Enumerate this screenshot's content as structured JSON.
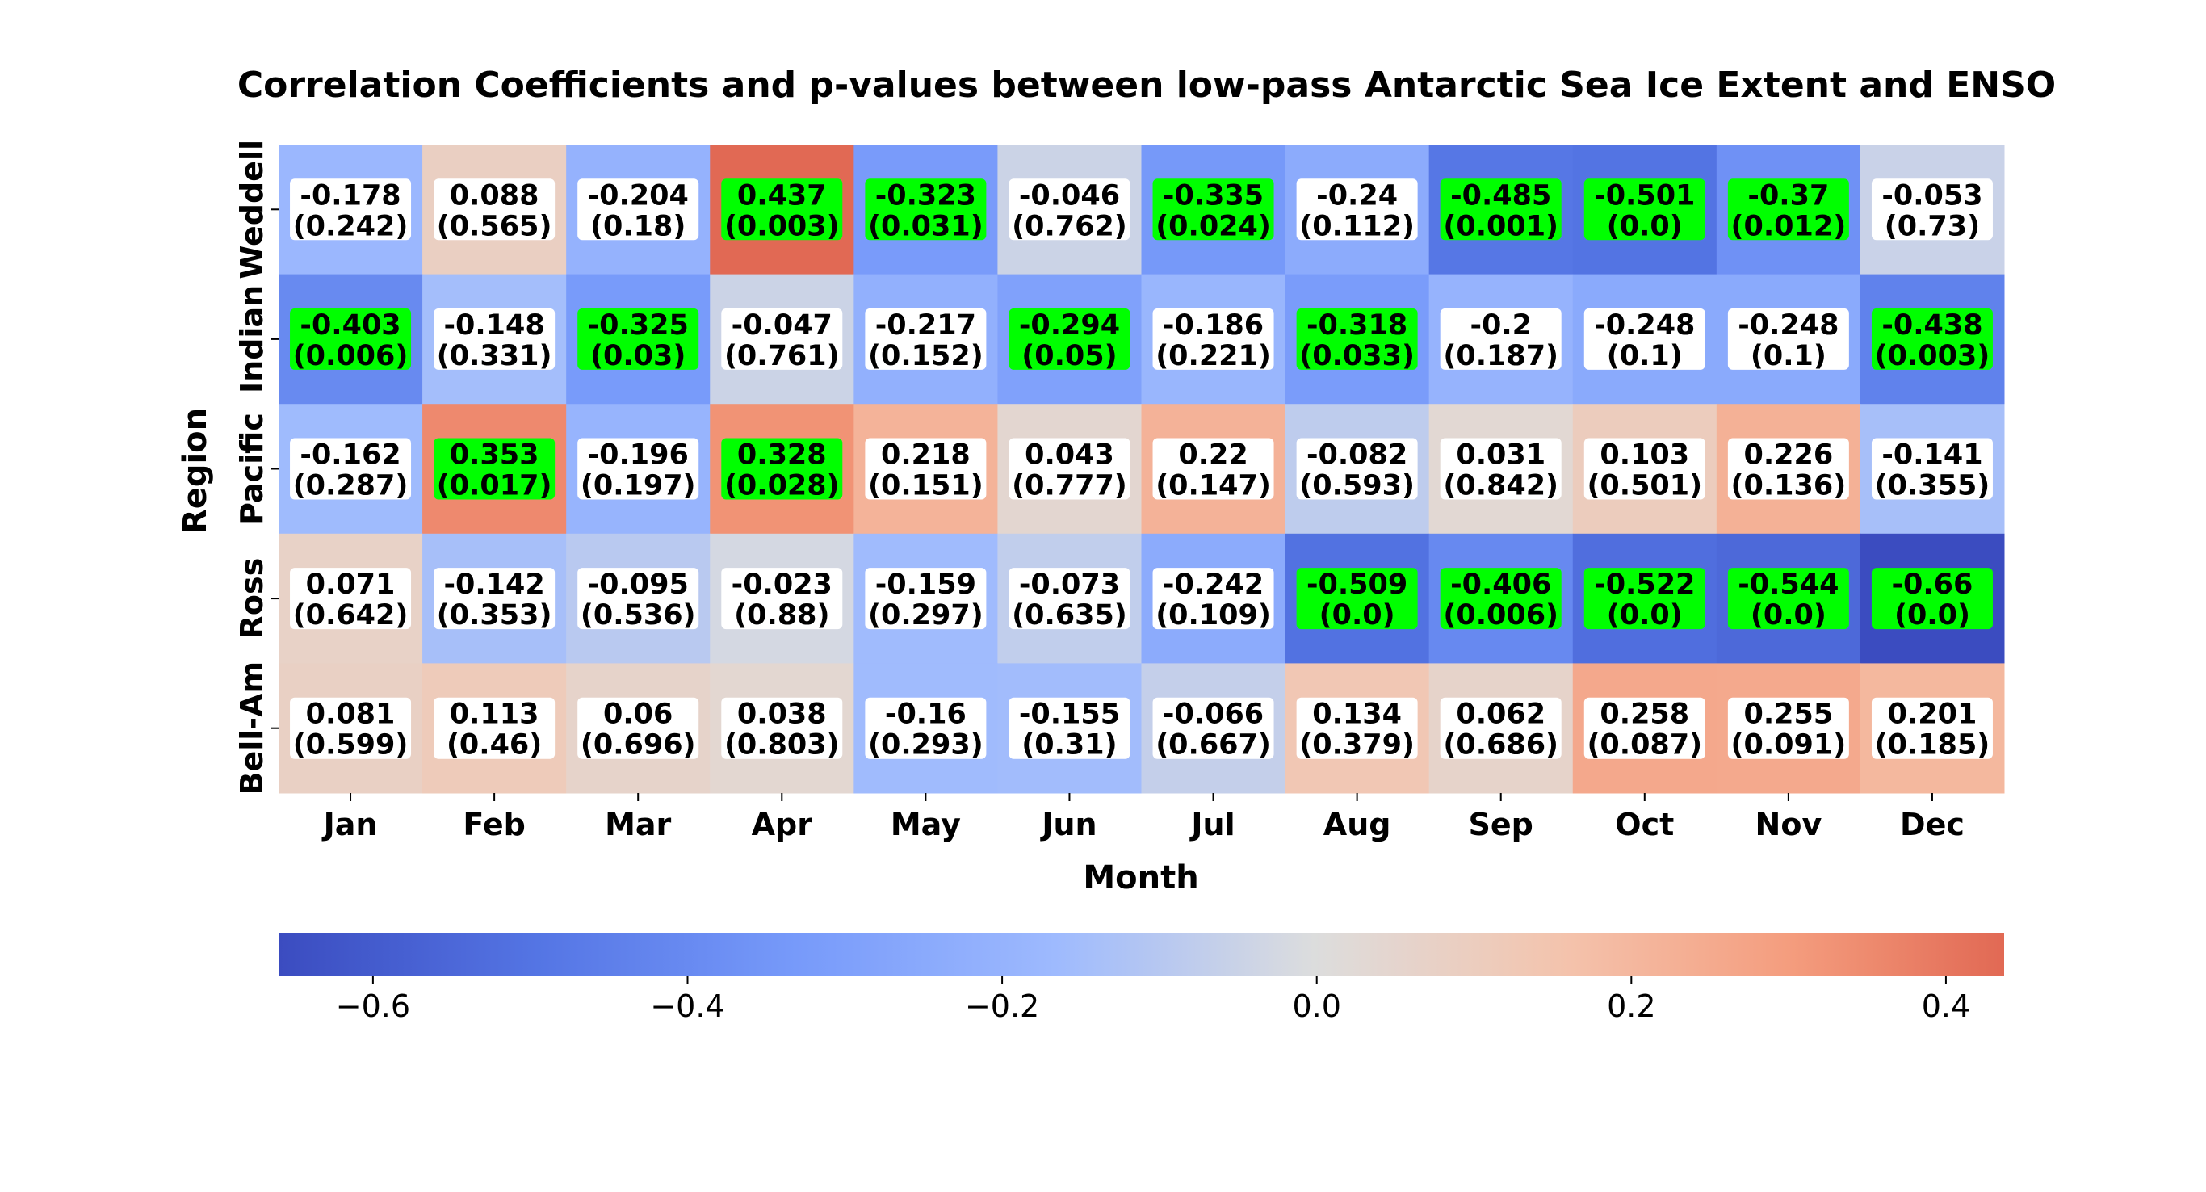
{
  "chart_data": {
    "type": "heatmap",
    "title": "Correlation Coefficients and p-values between low-pass Antarctic Sea Ice Extent and ENSO",
    "xlabel": "Month",
    "ylabel": "Region",
    "x_categories": [
      "Jan",
      "Feb",
      "Mar",
      "Apr",
      "May",
      "Jun",
      "Jul",
      "Aug",
      "Sep",
      "Oct",
      "Nov",
      "Dec"
    ],
    "y_categories": [
      "Weddell",
      "Indian",
      "Pacific",
      "Ross",
      "Bell-Am"
    ],
    "colormap": "coolwarm",
    "vmin": -0.66,
    "vmax": 0.437,
    "significance_color": "#00ff00",
    "significance_threshold": 0.05,
    "colorbar_ticks": [
      -0.6,
      -0.4,
      -0.2,
      0.0,
      0.2,
      0.4
    ],
    "colorbar_tick_labels": [
      "−0.6",
      "−0.4",
      "−0.2",
      "0.0",
      "0.2",
      "0.4"
    ],
    "values": [
      [
        -0.178,
        0.088,
        -0.204,
        0.437,
        -0.323,
        -0.046,
        -0.335,
        -0.24,
        -0.485,
        -0.501,
        -0.37,
        -0.053
      ],
      [
        -0.403,
        -0.148,
        -0.325,
        -0.047,
        -0.217,
        -0.294,
        -0.186,
        -0.318,
        -0.2,
        -0.248,
        -0.248,
        -0.438
      ],
      [
        -0.162,
        0.353,
        -0.196,
        0.328,
        0.218,
        0.043,
        0.22,
        -0.082,
        0.031,
        0.103,
        0.226,
        -0.141
      ],
      [
        0.071,
        -0.142,
        -0.095,
        -0.023,
        -0.159,
        -0.073,
        -0.242,
        -0.509,
        -0.406,
        -0.522,
        -0.544,
        -0.66
      ],
      [
        0.081,
        0.113,
        0.06,
        0.038,
        -0.16,
        -0.155,
        -0.066,
        0.134,
        0.062,
        0.258,
        0.255,
        0.201
      ]
    ],
    "value_labels": [
      [
        "-0.178",
        "0.088",
        "-0.204",
        "0.437",
        "-0.323",
        "-0.046",
        "-0.335",
        "-0.24",
        "-0.485",
        "-0.501",
        "-0.37",
        "-0.053"
      ],
      [
        "-0.403",
        "-0.148",
        "-0.325",
        "-0.047",
        "-0.217",
        "-0.294",
        "-0.186",
        "-0.318",
        "-0.2",
        "-0.248",
        "-0.248",
        "-0.438"
      ],
      [
        "-0.162",
        "0.353",
        "-0.196",
        "0.328",
        "0.218",
        "0.043",
        "0.22",
        "-0.082",
        "0.031",
        "0.103",
        "0.226",
        "-0.141"
      ],
      [
        "0.071",
        "-0.142",
        "-0.095",
        "-0.023",
        "-0.159",
        "-0.073",
        "-0.242",
        "-0.509",
        "-0.406",
        "-0.522",
        "-0.544",
        "-0.66"
      ],
      [
        "0.081",
        "0.113",
        "0.06",
        "0.038",
        "-0.16",
        "-0.155",
        "-0.066",
        "0.134",
        "0.062",
        "0.258",
        "0.255",
        "0.201"
      ]
    ],
    "p_value_labels": [
      [
        "(0.242)",
        "(0.565)",
        "(0.18)",
        "(0.003)",
        "(0.031)",
        "(0.762)",
        "(0.024)",
        "(0.112)",
        "(0.001)",
        "(0.0)",
        "(0.012)",
        "(0.73)"
      ],
      [
        "(0.006)",
        "(0.331)",
        "(0.03)",
        "(0.761)",
        "(0.152)",
        "(0.05)",
        "(0.221)",
        "(0.033)",
        "(0.187)",
        "(0.1)",
        "(0.1)",
        "(0.003)"
      ],
      [
        "(0.287)",
        "(0.017)",
        "(0.197)",
        "(0.028)",
        "(0.151)",
        "(0.777)",
        "(0.147)",
        "(0.593)",
        "(0.842)",
        "(0.501)",
        "(0.136)",
        "(0.355)"
      ],
      [
        "(0.642)",
        "(0.353)",
        "(0.536)",
        "(0.88)",
        "(0.297)",
        "(0.635)",
        "(0.109)",
        "(0.0)",
        "(0.006)",
        "(0.0)",
        "(0.0)",
        "(0.0)"
      ],
      [
        "(0.599)",
        "(0.46)",
        "(0.696)",
        "(0.803)",
        "(0.293)",
        "(0.31)",
        "(0.667)",
        "(0.379)",
        "(0.686)",
        "(0.087)",
        "(0.091)",
        "(0.185)"
      ]
    ],
    "p_values": [
      [
        0.242,
        0.565,
        0.18,
        0.003,
        0.031,
        0.762,
        0.024,
        0.112,
        0.001,
        0.0,
        0.012,
        0.73
      ],
      [
        0.006,
        0.331,
        0.03,
        0.761,
        0.152,
        0.05,
        0.221,
        0.033,
        0.187,
        0.1,
        0.1,
        0.003
      ],
      [
        0.287,
        0.017,
        0.197,
        0.028,
        0.151,
        0.777,
        0.147,
        0.593,
        0.842,
        0.501,
        0.136,
        0.355
      ],
      [
        0.642,
        0.353,
        0.536,
        0.88,
        0.297,
        0.635,
        0.109,
        0.0,
        0.006,
        0.0,
        0.0,
        0.0
      ],
      [
        0.599,
        0.46,
        0.696,
        0.803,
        0.293,
        0.31,
        0.667,
        0.379,
        0.686,
        0.087,
        0.091,
        0.185
      ]
    ]
  }
}
